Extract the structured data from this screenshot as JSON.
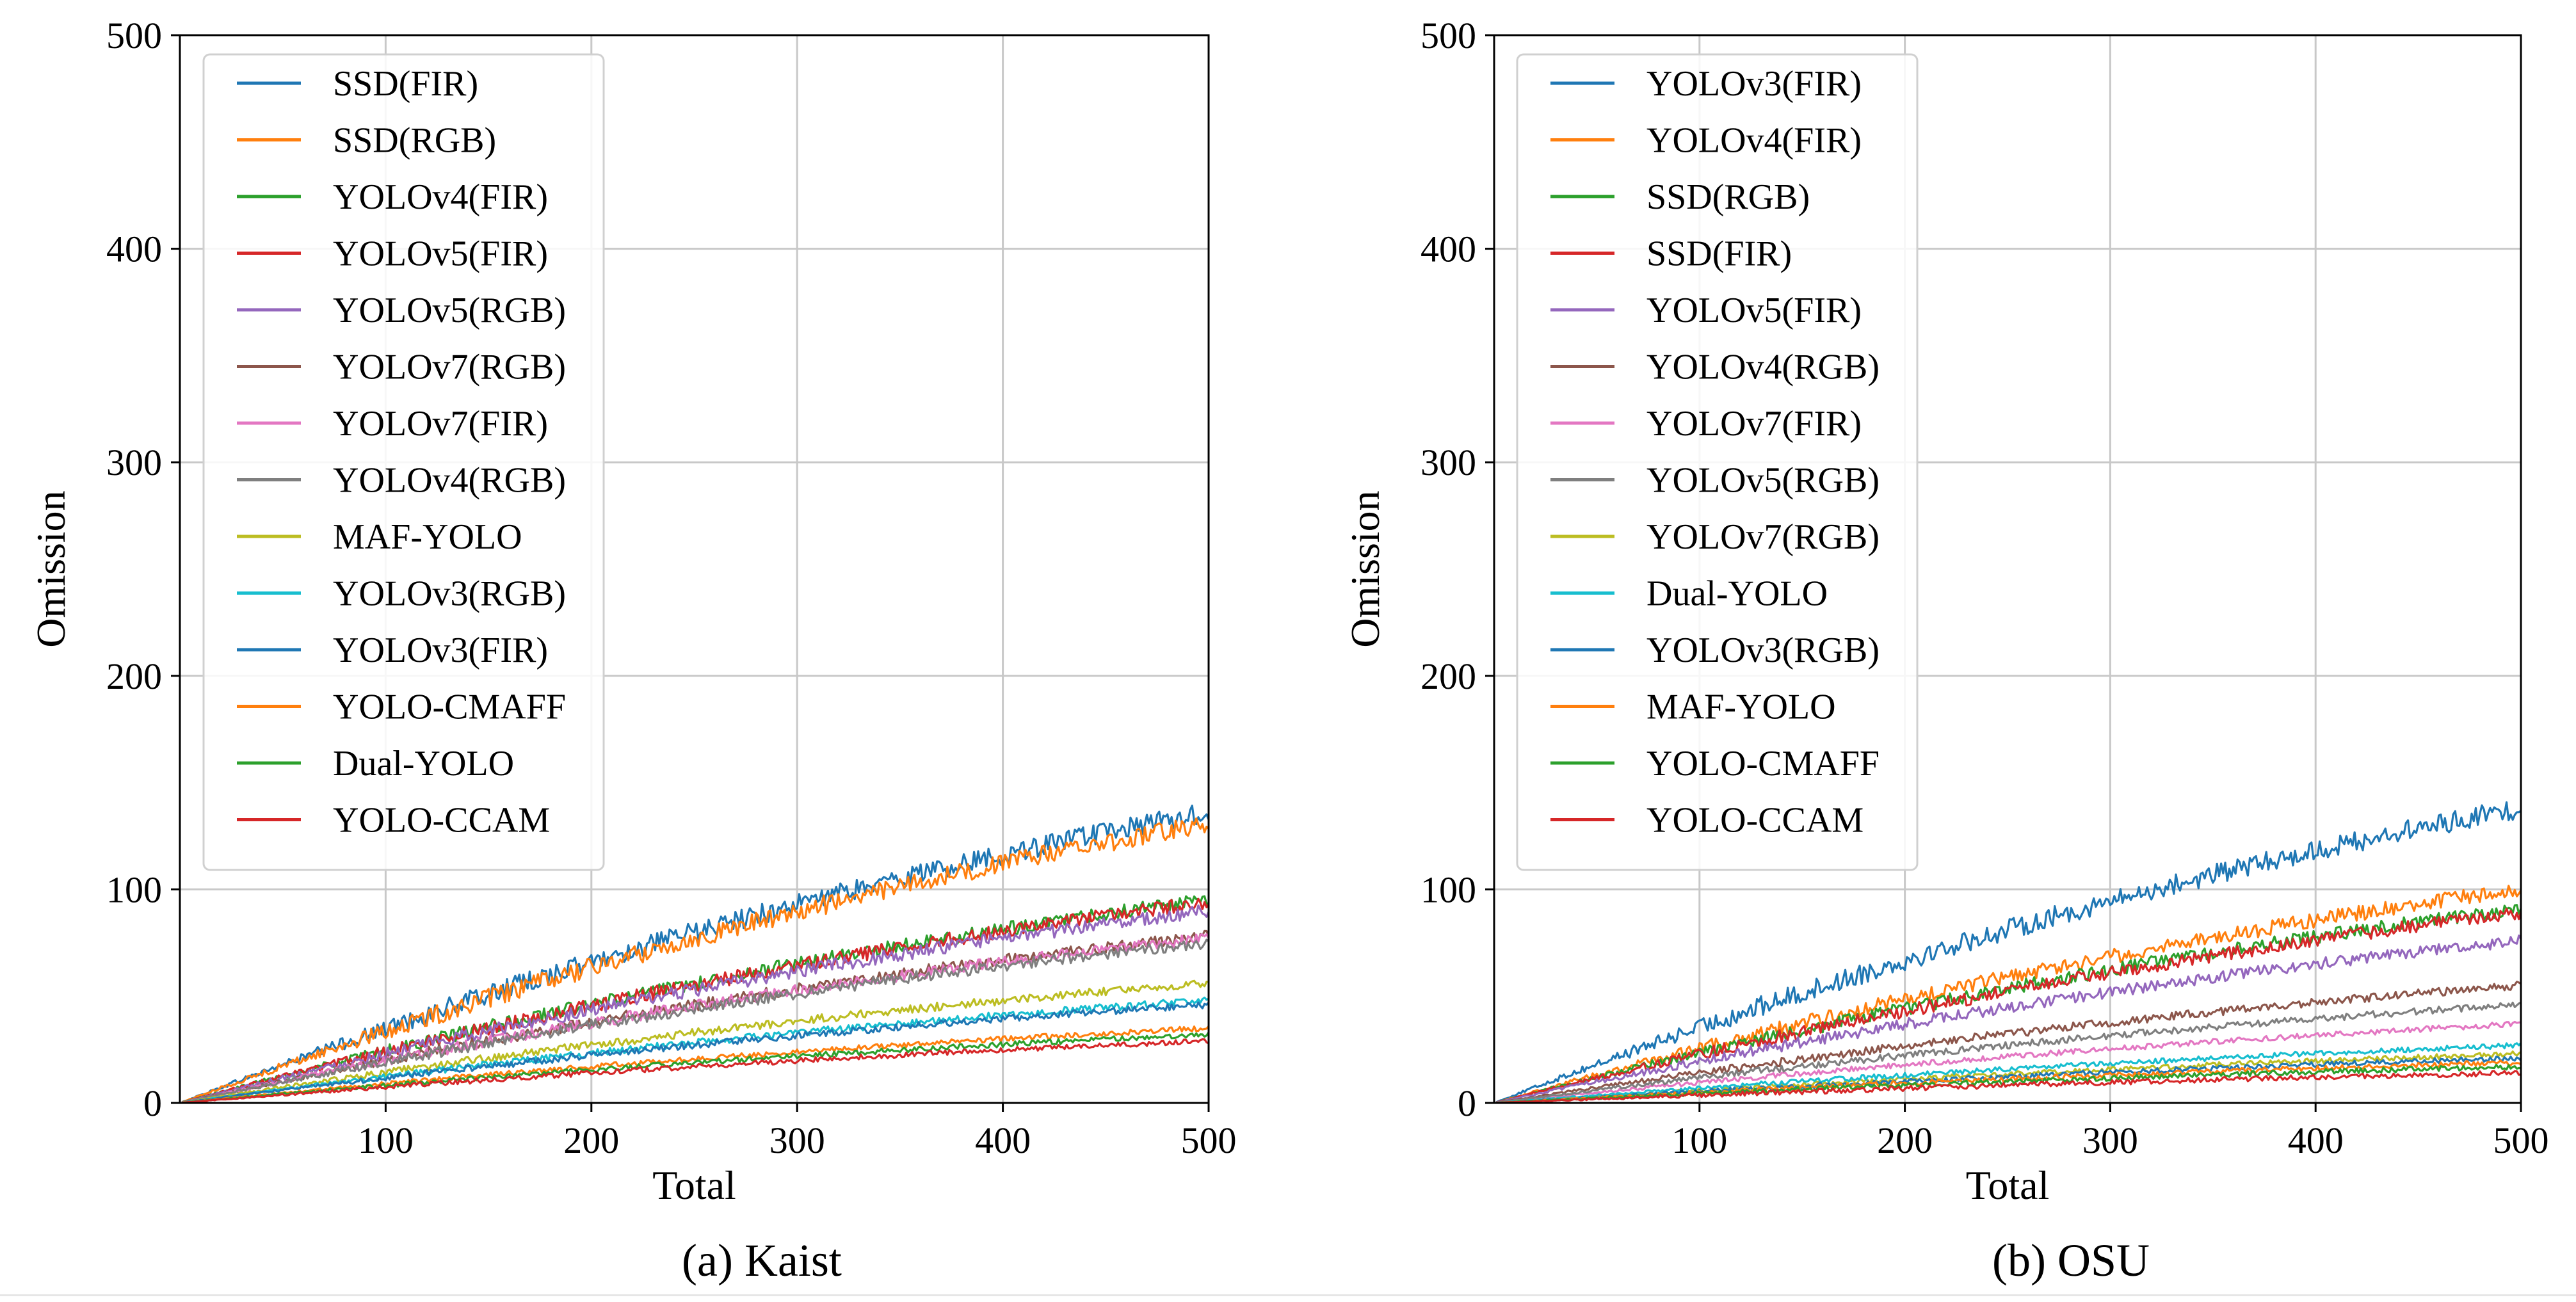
{
  "chart_data": [
    {
      "type": "line",
      "caption": "(a) Kaist",
      "xlabel": "Total",
      "ylabel": "Omission",
      "xlim": [
        0,
        500
      ],
      "ylim": [
        0,
        500
      ],
      "xticks": [
        100,
        200,
        300,
        400,
        500
      ],
      "yticks": [
        0,
        100,
        200,
        300,
        400,
        500
      ],
      "grid": true,
      "legend_position": "upper-left",
      "series": [
        {
          "name": "SSD(FIR)",
          "color": "#1f77b4",
          "final": 136
        },
        {
          "name": "SSD(RGB)",
          "color": "#ff7f0e",
          "final": 131
        },
        {
          "name": "YOLOv4(FIR)",
          "color": "#2ca02c",
          "final": 95
        },
        {
          "name": "YOLOv5(FIR)",
          "color": "#d62728",
          "final": 94
        },
        {
          "name": "YOLOv5(RGB)",
          "color": "#9467bd",
          "final": 90
        },
        {
          "name": "YOLOv7(RGB)",
          "color": "#8c564b",
          "final": 78
        },
        {
          "name": "YOLOv7(FIR)",
          "color": "#e377c2",
          "final": 77
        },
        {
          "name": "YOLOv4(RGB)",
          "color": "#7f7f7f",
          "final": 75
        },
        {
          "name": "MAF-YOLO",
          "color": "#bcbd22",
          "final": 56
        },
        {
          "name": "YOLOv3(RGB)",
          "color": "#17becf",
          "final": 48
        },
        {
          "name": "YOLOv3(FIR)",
          "color": "#1f77b4",
          "final": 46
        },
        {
          "name": "YOLO-CMAFF",
          "color": "#ff7f0e",
          "final": 35
        },
        {
          "name": "Dual-YOLO",
          "color": "#2ca02c",
          "final": 32
        },
        {
          "name": "YOLO-CCAM",
          "color": "#d62728",
          "final": 29
        }
      ]
    },
    {
      "type": "line",
      "caption": "(b) OSU",
      "xlabel": "Total",
      "ylabel": "Omission",
      "xlim": [
        0,
        500
      ],
      "ylim": [
        0,
        500
      ],
      "xticks": [
        100,
        200,
        300,
        400,
        500
      ],
      "yticks": [
        0,
        100,
        200,
        300,
        400,
        500
      ],
      "grid": true,
      "legend_position": "upper-left",
      "series": [
        {
          "name": "YOLOv3(FIR)",
          "color": "#1f77b4",
          "final": 138
        },
        {
          "name": "YOLOv4(FIR)",
          "color": "#ff7f0e",
          "final": 100
        },
        {
          "name": "SSD(RGB)",
          "color": "#2ca02c",
          "final": 91
        },
        {
          "name": "SSD(FIR)",
          "color": "#d62728",
          "final": 89
        },
        {
          "name": "YOLOv5(FIR)",
          "color": "#9467bd",
          "final": 76
        },
        {
          "name": "YOLOv4(RGB)",
          "color": "#8c564b",
          "final": 55
        },
        {
          "name": "YOLOv7(FIR)",
          "color": "#e377c2",
          "final": 37
        },
        {
          "name": "YOLOv5(RGB)",
          "color": "#7f7f7f",
          "final": 46
        },
        {
          "name": "YOLOv7(RGB)",
          "color": "#bcbd22",
          "final": 23
        },
        {
          "name": "Dual-YOLO",
          "color": "#17becf",
          "final": 27
        },
        {
          "name": "YOLOv3(RGB)",
          "color": "#1f77b4",
          "final": 21
        },
        {
          "name": "MAF-YOLO",
          "color": "#ff7f0e",
          "final": 19
        },
        {
          "name": "YOLO-CMAFF",
          "color": "#2ca02c",
          "final": 17
        },
        {
          "name": "YOLO-CCAM",
          "color": "#d62728",
          "final": 14
        }
      ]
    }
  ]
}
